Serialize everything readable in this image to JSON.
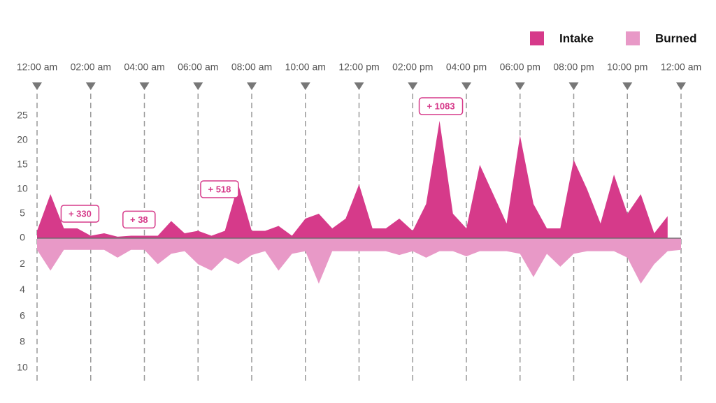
{
  "chart_data": {
    "type": "area",
    "x": [
      0,
      0.5,
      1,
      1.5,
      2,
      2.5,
      3,
      3.5,
      4,
      4.5,
      5,
      5.5,
      6,
      6.5,
      7,
      7.5,
      8,
      8.5,
      9,
      9.5,
      10,
      10.5,
      11,
      11.5,
      12,
      12.5,
      13,
      13.5,
      14,
      14.5,
      15,
      15.5,
      16,
      16.5,
      17,
      17.5,
      18,
      18.5,
      19,
      19.5,
      20,
      20.5,
      21,
      21.5,
      22,
      22.5,
      23,
      23.5,
      24
    ],
    "xlim": [
      0,
      24
    ],
    "xticks": [
      {
        "value": 0,
        "label": "12:00 am"
      },
      {
        "value": 2,
        "label": "02:00 am"
      },
      {
        "value": 4,
        "label": "04:00 am"
      },
      {
        "value": 6,
        "label": "06:00 am"
      },
      {
        "value": 8,
        "label": "08:00 am"
      },
      {
        "value": 10,
        "label": "10:00 am"
      },
      {
        "value": 12,
        "label": "12:00 pm"
      },
      {
        "value": 14,
        "label": "02:00 pm"
      },
      {
        "value": 16,
        "label": "04:00 pm"
      },
      {
        "value": 18,
        "label": "06:00 pm"
      },
      {
        "value": 20,
        "label": "08:00 pm"
      },
      {
        "value": 22,
        "label": "10:00 pm"
      },
      {
        "value": 24,
        "label": "12:00 am"
      }
    ],
    "ylim": [
      0,
      25
    ],
    "yticks": [
      0,
      5,
      10,
      15,
      20,
      25
    ],
    "y2lim": [
      0,
      10
    ],
    "y2ticks": [
      2,
      4,
      6,
      8,
      10
    ],
    "legend": "top-right",
    "series": [
      {
        "name": "Intake",
        "color": "#d63a8a",
        "values": [
          1.5,
          9,
          2,
          2,
          0.5,
          1,
          0.3,
          0.5,
          0.5,
          0.5,
          3.5,
          1,
          1.5,
          0.5,
          1.5,
          11,
          1.5,
          1.5,
          2.5,
          0.5,
          4,
          5,
          2,
          4,
          11,
          2,
          2,
          4,
          1.5,
          7,
          24,
          5,
          2,
          15,
          9,
          3,
          21,
          7,
          2,
          2,
          16,
          10,
          3,
          13,
          5,
          9,
          1,
          4.5,
          null
        ]
      },
      {
        "name": "Burned",
        "color": "#e899c7",
        "axis": "y2",
        "values": [
          0.9,
          2.5,
          0.9,
          0.9,
          0.9,
          0.9,
          1.5,
          0.9,
          0.9,
          2,
          1.2,
          1,
          2,
          2.5,
          1.5,
          2,
          1.3,
          1,
          2.5,
          1.2,
          1,
          3.5,
          1,
          1,
          1,
          1,
          1,
          1.3,
          1,
          1.5,
          1,
          1,
          1.4,
          1,
          1,
          1,
          1.2,
          3,
          1.2,
          2.2,
          1.2,
          1,
          1,
          1,
          1.5,
          3.5,
          2,
          1,
          0.9
        ]
      }
    ],
    "annotations": [
      {
        "text": "+ 330",
        "x": 1.6,
        "y": 5
      },
      {
        "text": "+ 38",
        "x": 3.8,
        "y": 3.8
      },
      {
        "text": "+ 518",
        "x": 6.8,
        "y": 10
      },
      {
        "text": "+ 1083",
        "x": 15.05,
        "y": 27
      }
    ]
  }
}
